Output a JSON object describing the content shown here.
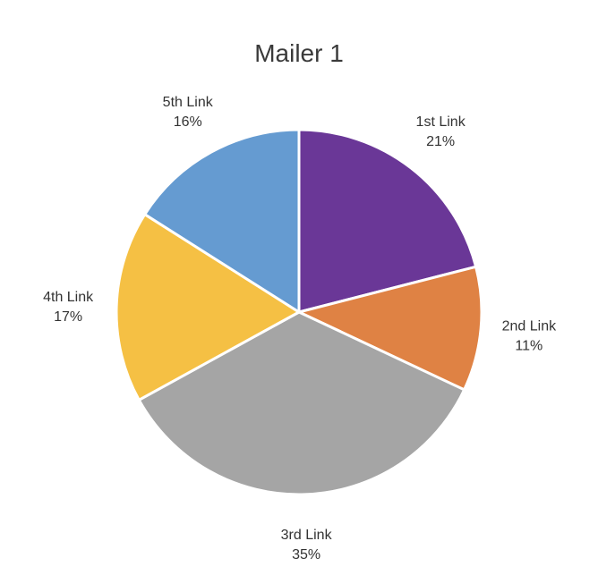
{
  "chart_data": {
    "type": "pie",
    "title": "Mailer 1",
    "categories": [
      "1st Link",
      "2nd Link",
      "3rd Link",
      "4th Link",
      "5th Link"
    ],
    "values": [
      21,
      11,
      35,
      17,
      16
    ],
    "value_labels": [
      "21%",
      "11%",
      "35%",
      "17%",
      "16%"
    ],
    "colors": [
      "#6a3797",
      "#df8244",
      "#a5a5a5",
      "#f5c044",
      "#659bd1"
    ],
    "legend": "none",
    "data_labels": "outside"
  }
}
